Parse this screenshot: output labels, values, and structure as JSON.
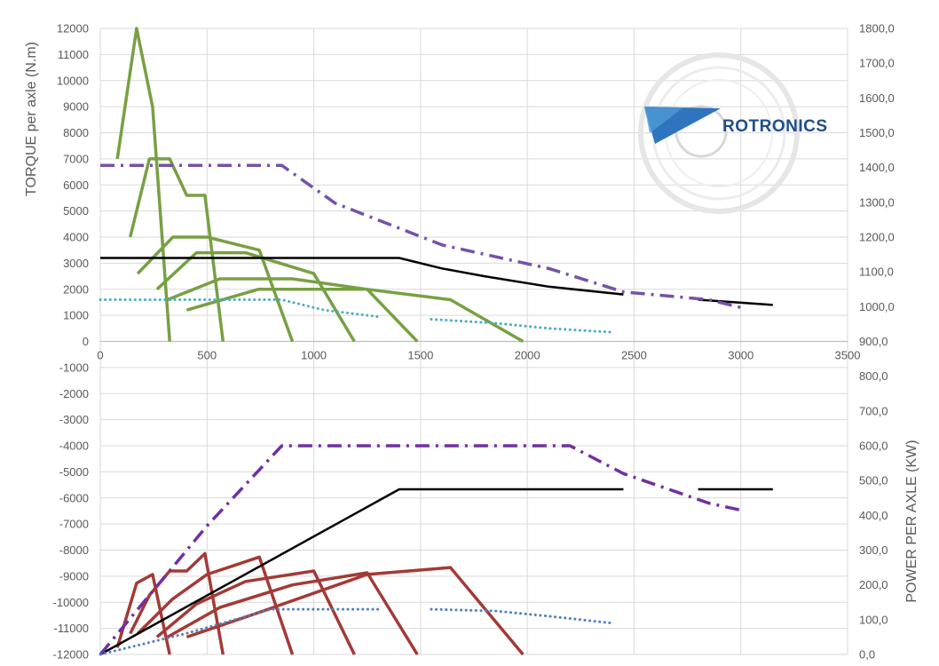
{
  "chart_data": {
    "type": "line",
    "title": "",
    "xlabel": "",
    "ylabel": "TORQUE per axle (N.m)",
    "y2label": "POWER PER AXLE (KW)",
    "xlim": [
      0,
      3500
    ],
    "ylim": [
      -12000,
      12000
    ],
    "y2lim": [
      0,
      1800
    ],
    "x_ticks": [
      "0",
      "500",
      "1000",
      "1500",
      "2000",
      "2500",
      "3000",
      "3500"
    ],
    "y_ticks": [
      "12000",
      "11000",
      "10000",
      "9000",
      "8000",
      "7000",
      "6000",
      "5000",
      "4000",
      "3000",
      "2000",
      "1000",
      "0",
      "-1000",
      "-2000",
      "-3000",
      "-4000",
      "-5000",
      "-6000",
      "-7000",
      "-8000",
      "-9000",
      "-10000",
      "-11000",
      "-12000"
    ],
    "y2_ticks": [
      "1800,0",
      "1700,0",
      "1600,0",
      "1500,0",
      "1400,0",
      "1300,0",
      "1200,0",
      "1100,0",
      "1000,0",
      "900,0",
      "800,0",
      "700,0",
      "600,0",
      "500,0",
      "400,0",
      "300,0",
      "200,0",
      "100,0",
      "0,0"
    ],
    "grid": true,
    "legend": "none",
    "logo": {
      "text": "ROTRONICS",
      "name": "rotronics-logo"
    },
    "colors": {
      "green": "#77a043",
      "red": "#a33a36",
      "black": "#000000",
      "purple": "#7552a8",
      "purple_dark": "#7030a0",
      "teal": "#4bacc6",
      "blue": "#4f81bd",
      "grid": "#d9d9d9",
      "text": "#595959"
    },
    "series": [
      {
        "color": "green",
        "style": "solid",
        "width": 3.5,
        "axis": "left",
        "points": [
          [
            80,
            7000
          ],
          [
            170,
            12000
          ],
          [
            245,
            9000
          ],
          [
            325,
            0
          ]
        ]
      },
      {
        "color": "green",
        "style": "solid",
        "width": 3.5,
        "axis": "left",
        "points": [
          [
            140,
            4000
          ],
          [
            230,
            7000
          ],
          [
            325,
            7000
          ],
          [
            405,
            5600
          ],
          [
            490,
            5600
          ],
          [
            575,
            0
          ]
        ]
      },
      {
        "color": "green",
        "style": "solid",
        "width": 3.5,
        "axis": "left",
        "points": [
          [
            175,
            2600
          ],
          [
            340,
            4000
          ],
          [
            500,
            4000
          ],
          [
            745,
            3500
          ],
          [
            900,
            0
          ]
        ]
      },
      {
        "color": "green",
        "style": "solid",
        "width": 3.5,
        "axis": "left",
        "points": [
          [
            265,
            2000
          ],
          [
            450,
            3400
          ],
          [
            680,
            3400
          ],
          [
            1000,
            2600
          ],
          [
            1190,
            0
          ]
        ]
      },
      {
        "color": "green",
        "style": "solid",
        "width": 3.5,
        "axis": "left",
        "points": [
          [
            315,
            1600
          ],
          [
            560,
            2400
          ],
          [
            900,
            2400
          ],
          [
            1250,
            2000
          ],
          [
            1485,
            0
          ]
        ]
      },
      {
        "color": "green",
        "style": "solid",
        "width": 3.5,
        "axis": "left",
        "points": [
          [
            405,
            1200
          ],
          [
            740,
            2000
          ],
          [
            1250,
            2000
          ],
          [
            1640,
            1600
          ],
          [
            1980,
            0
          ]
        ]
      },
      {
        "color": "black",
        "style": "solid",
        "width": 2.5,
        "axis": "left",
        "points": [
          [
            0,
            3200
          ],
          [
            1400,
            3200
          ],
          [
            1600,
            2800
          ],
          [
            1800,
            2500
          ],
          [
            2100,
            2100
          ],
          [
            2450,
            1800
          ]
        ]
      },
      {
        "color": "black",
        "style": "solid",
        "width": 2.5,
        "axis": "left",
        "points": [
          [
            2800,
            1600
          ],
          [
            3150,
            1400
          ]
        ]
      },
      {
        "color": "purple",
        "style": "dashdot",
        "width": 3.5,
        "axis": "left",
        "points": [
          [
            0,
            6750
          ],
          [
            850,
            6750
          ],
          [
            1100,
            5300
          ],
          [
            1600,
            3700
          ],
          [
            2100,
            2800
          ],
          [
            2450,
            1900
          ],
          [
            2850,
            1600
          ],
          [
            3000,
            1300
          ]
        ]
      },
      {
        "color": "teal",
        "style": "dotted",
        "width": 3,
        "axis": "left",
        "points": [
          [
            0,
            1600
          ],
          [
            850,
            1600
          ],
          [
            1050,
            1200
          ],
          [
            1300,
            950
          ]
        ]
      },
      {
        "color": "teal",
        "style": "dotted",
        "width": 3,
        "axis": "left",
        "points": [
          [
            1550,
            850
          ],
          [
            1850,
            700
          ],
          [
            2100,
            500
          ],
          [
            2400,
            350
          ]
        ]
      },
      {
        "color": "red",
        "style": "solid",
        "width": 3.5,
        "axis": "right",
        "points": [
          [
            80,
            20
          ],
          [
            170,
            205
          ],
          [
            245,
            230
          ],
          [
            325,
            0
          ]
        ]
      },
      {
        "color": "red",
        "style": "solid",
        "width": 3.5,
        "axis": "right",
        "points": [
          [
            140,
            60
          ],
          [
            230,
            170
          ],
          [
            325,
            240
          ],
          [
            405,
            240
          ],
          [
            490,
            290
          ],
          [
            575,
            0
          ]
        ]
      },
      {
        "color": "red",
        "style": "solid",
        "width": 3.5,
        "axis": "right",
        "points": [
          [
            175,
            60
          ],
          [
            340,
            160
          ],
          [
            500,
            230
          ],
          [
            745,
            280
          ],
          [
            900,
            0
          ]
        ]
      },
      {
        "color": "red",
        "style": "solid",
        "width": 3.5,
        "axis": "right",
        "points": [
          [
            265,
            50
          ],
          [
            450,
            145
          ],
          [
            680,
            210
          ],
          [
            1000,
            240
          ],
          [
            1190,
            0
          ]
        ]
      },
      {
        "color": "red",
        "style": "solid",
        "width": 3.5,
        "axis": "right",
        "points": [
          [
            315,
            50
          ],
          [
            560,
            135
          ],
          [
            900,
            200
          ],
          [
            1250,
            235
          ],
          [
            1485,
            0
          ]
        ]
      },
      {
        "color": "red",
        "style": "solid",
        "width": 3.5,
        "axis": "right",
        "points": [
          [
            405,
            50
          ],
          [
            740,
            120
          ],
          [
            1250,
            230
          ],
          [
            1640,
            250
          ],
          [
            1980,
            0
          ]
        ]
      },
      {
        "color": "black",
        "style": "solid",
        "width": 2.5,
        "axis": "right",
        "points": [
          [
            0,
            0
          ],
          [
            1400,
            475
          ],
          [
            2450,
            475
          ]
        ]
      },
      {
        "color": "black",
        "style": "solid",
        "width": 2.5,
        "axis": "right",
        "points": [
          [
            2800,
            475
          ],
          [
            3150,
            475
          ]
        ]
      },
      {
        "color": "purple_dark",
        "style": "dashdot",
        "width": 3.5,
        "axis": "right",
        "points": [
          [
            0,
            0
          ],
          [
            500,
            370
          ],
          [
            850,
            600
          ],
          [
            2200,
            600
          ],
          [
            2450,
            520
          ],
          [
            2850,
            435
          ],
          [
            3000,
            415
          ]
        ]
      },
      {
        "color": "blue",
        "style": "dotted",
        "width": 3,
        "axis": "right",
        "points": [
          [
            0,
            0
          ],
          [
            400,
            60
          ],
          [
            800,
            130
          ],
          [
            1300,
            130
          ]
        ]
      },
      {
        "color": "blue",
        "style": "dotted",
        "width": 3,
        "axis": "right",
        "points": [
          [
            1550,
            130
          ],
          [
            1850,
            125
          ],
          [
            2100,
            110
          ],
          [
            2400,
            90
          ]
        ]
      }
    ]
  }
}
